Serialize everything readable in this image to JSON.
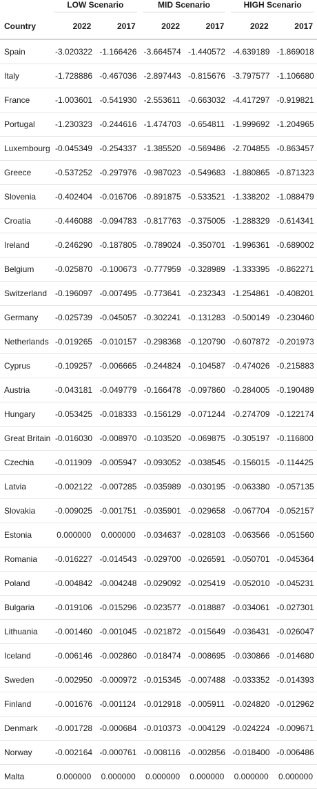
{
  "table": {
    "group_headers": [
      "LOW Scenario",
      "MID Scenario",
      "HIGH Scenario"
    ],
    "column_headers": [
      "Country",
      "2022",
      "2017",
      "2022",
      "2017",
      "2022",
      "2017"
    ],
    "rows": [
      [
        "Spain",
        "-3.020322",
        "-1.166426",
        "-3.664574",
        "-1.440572",
        "-4.639189",
        "-1.869018"
      ],
      [
        "Italy",
        "-1.728886",
        "-0.467036",
        "-2.897443",
        "-0.815676",
        "-3.797577",
        "-1.106680"
      ],
      [
        "France",
        "-1.003601",
        "-0.541930",
        "-2.553611",
        "-0.663032",
        "-4.417297",
        "-0.919821"
      ],
      [
        "Portugal",
        "-1.230323",
        "-0.244616",
        "-1.474703",
        "-0.654811",
        "-1.999692",
        "-1.204965"
      ],
      [
        "Luxembourg",
        "-0.045349",
        "-0.254337",
        "-1.385520",
        "-0.569486",
        "-2.704855",
        "-0.863457"
      ],
      [
        "Greece",
        "-0.537252",
        "-0.297976",
        "-0.987023",
        "-0.549683",
        "-1.880865",
        "-0.871323"
      ],
      [
        "Slovenia",
        "-0.402404",
        "-0.016706",
        "-0.891875",
        "-0.533521",
        "-1.338202",
        "-1.088479"
      ],
      [
        "Croatia",
        "-0.446088",
        "-0.094783",
        "-0.817763",
        "-0.375005",
        "-1.288329",
        "-0.614341"
      ],
      [
        "Ireland",
        "-0.246290",
        "-0.187805",
        "-0.789024",
        "-0.350701",
        "-1.996361",
        "-0.689002"
      ],
      [
        "Belgium",
        "-0.025870",
        "-0.100673",
        "-0.777959",
        "-0.328989",
        "-1.333395",
        "-0.862271"
      ],
      [
        "Switzerland",
        "-0.196097",
        "-0.007495",
        "-0.773641",
        "-0.232343",
        "-1.254861",
        "-0.408201"
      ],
      [
        "Germany",
        "-0.025739",
        "-0.045057",
        "-0.302241",
        "-0.131283",
        "-0.500149",
        "-0.230460"
      ],
      [
        "Netherlands",
        "-0.019265",
        "-0.010157",
        "-0.298368",
        "-0.120790",
        "-0.607872",
        "-0.201973"
      ],
      [
        "Cyprus",
        "-0.109257",
        "-0.006665",
        "-0.244824",
        "-0.104587",
        "-0.474026",
        "-0.215883"
      ],
      [
        "Austria",
        "-0.043181",
        "-0.049779",
        "-0.166478",
        "-0.097860",
        "-0.284005",
        "-0.190489"
      ],
      [
        "Hungary",
        "-0.053425",
        "-0.018333",
        "-0.156129",
        "-0.071244",
        "-0.274709",
        "-0.122174"
      ],
      [
        "Great Britain",
        "-0.016030",
        "-0.008970",
        "-0.103520",
        "-0.069875",
        "-0.305197",
        "-0.116800"
      ],
      [
        "Czechia",
        "-0.011909",
        "-0.005947",
        "-0.093052",
        "-0.038545",
        "-0.156015",
        "-0.114425"
      ],
      [
        "Latvia",
        "-0.002122",
        "-0.007285",
        "-0.035989",
        "-0.030195",
        "-0.063380",
        "-0.057135"
      ],
      [
        "Slovakia",
        "-0.009025",
        "-0.001751",
        "-0.035901",
        "-0.029658",
        "-0.067704",
        "-0.052157"
      ],
      [
        "Estonia",
        "0.000000",
        "0.000000",
        "-0.034637",
        "-0.028103",
        "-0.063566",
        "-0.051560"
      ],
      [
        "Romania",
        "-0.016227",
        "-0.014543",
        "-0.029700",
        "-0.026591",
        "-0.050701",
        "-0.045364"
      ],
      [
        "Poland",
        "-0.004842",
        "-0.004248",
        "-0.029092",
        "-0.025419",
        "-0.052010",
        "-0.045231"
      ],
      [
        "Bulgaria",
        "-0.019106",
        "-0.015296",
        "-0.023577",
        "-0.018887",
        "-0.034061",
        "-0.027301"
      ],
      [
        "Lithuania",
        "-0.001460",
        "-0.001045",
        "-0.021872",
        "-0.015649",
        "-0.036431",
        "-0.026047"
      ],
      [
        "Iceland",
        "-0.006146",
        "-0.002860",
        "-0.018474",
        "-0.008695",
        "-0.030866",
        "-0.014680"
      ],
      [
        "Sweden",
        "-0.002950",
        "-0.000972",
        "-0.015345",
        "-0.007488",
        "-0.033352",
        "-0.014393"
      ],
      [
        "Finland",
        "-0.001676",
        "-0.001124",
        "-0.012918",
        "-0.005911",
        "-0.024820",
        "-0.012962"
      ],
      [
        "Denmark",
        "-0.001728",
        "-0.000684",
        "-0.010373",
        "-0.004129",
        "-0.024224",
        "-0.009671"
      ],
      [
        "Norway",
        "-0.002164",
        "-0.000761",
        "-0.008116",
        "-0.002856",
        "-0.018400",
        "-0.006486"
      ],
      [
        "Malta",
        "0.000000",
        "0.000000",
        "0.000000",
        "0.000000",
        "0.000000",
        "0.000000"
      ]
    ]
  }
}
